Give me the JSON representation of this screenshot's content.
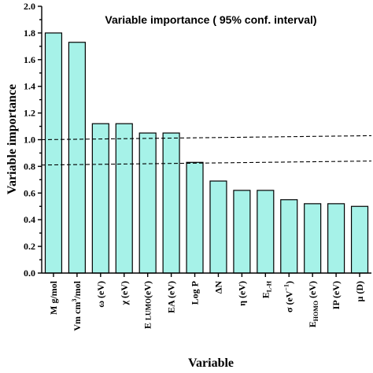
{
  "chart_data": {
    "type": "bar",
    "title": "Variable importance ( 95% conf. interval)",
    "xlabel": "Variable",
    "ylabel": "Variable importance",
    "ylim": [
      0,
      2.0
    ],
    "yticks": [
      "0.0",
      "0.2",
      "0.4",
      "0.6",
      "0.8",
      "1.0",
      "1.2",
      "1.4",
      "1.6",
      "1.8",
      "2.0"
    ],
    "grid": false,
    "bar_color": "#a6f2e8",
    "categories": [
      {
        "parts": [
          {
            "t": "M g/mol"
          }
        ]
      },
      {
        "parts": [
          {
            "t": "Vm cm"
          },
          {
            "t": "3",
            "sup": true
          },
          {
            "t": "/mol"
          }
        ]
      },
      {
        "parts": [
          {
            "t": "ω (eV)"
          }
        ]
      },
      {
        "parts": [
          {
            "t": "χ (eV)"
          }
        ]
      },
      {
        "parts": [
          {
            "t": "E "
          },
          {
            "t": "LUMO",
            "small": true
          },
          {
            "t": "(eV)"
          }
        ]
      },
      {
        "parts": [
          {
            "t": "EA (eV)"
          }
        ]
      },
      {
        "parts": [
          {
            "t": "Log P"
          }
        ]
      },
      {
        "parts": [
          {
            "t": "ΔN"
          }
        ]
      },
      {
        "parts": [
          {
            "t": "η (eV)"
          }
        ]
      },
      {
        "parts": [
          {
            "t": "E"
          },
          {
            "t": "L-H",
            "sub": true
          }
        ]
      },
      {
        "parts": [
          {
            "t": "σ (eV"
          },
          {
            "t": "−1",
            "sup": true
          },
          {
            "t": ")"
          }
        ]
      },
      {
        "parts": [
          {
            "t": "E"
          },
          {
            "t": "HOMO",
            "sub": true
          },
          {
            "t": " (eV)"
          }
        ]
      },
      {
        "parts": [
          {
            "t": "IP (eV)"
          }
        ]
      },
      {
        "parts": [
          {
            "t": "μ (D)"
          }
        ]
      }
    ],
    "values": [
      1.8,
      1.73,
      1.12,
      1.12,
      1.05,
      1.05,
      0.83,
      0.69,
      0.62,
      0.62,
      0.55,
      0.52,
      0.52,
      0.5
    ],
    "reference_lines": [
      {
        "y_start": 1.0,
        "y_end": 1.03
      },
      {
        "y_start": 0.81,
        "y_end": 0.84
      }
    ]
  }
}
